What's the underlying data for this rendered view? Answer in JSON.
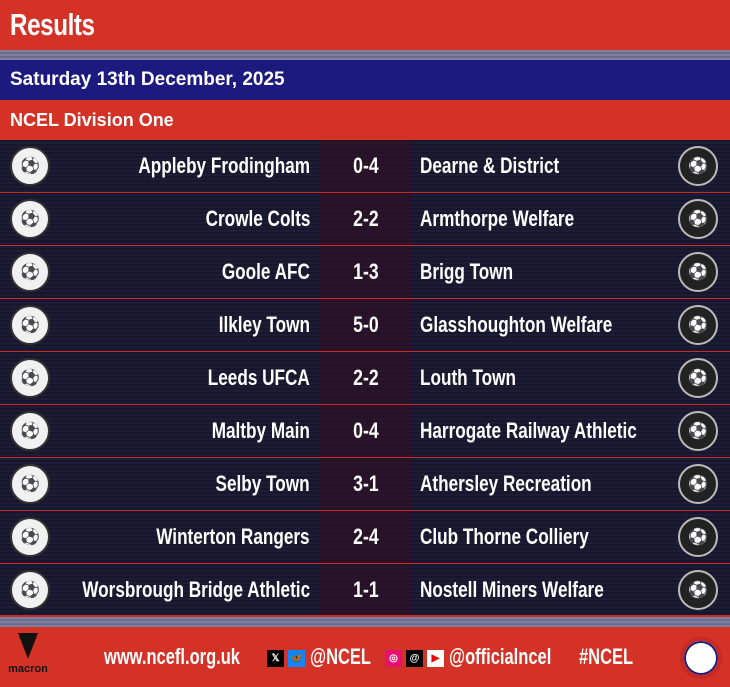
{
  "header": {
    "title": "Results"
  },
  "date": "Saturday 13th December, 2025",
  "division": "NCEL Division One",
  "matches": [
    {
      "home": "Appleby Frodingham",
      "score": "0-4",
      "away": "Dearne & District"
    },
    {
      "home": "Crowle Colts",
      "score": "2-2",
      "away": "Armthorpe Welfare"
    },
    {
      "home": "Goole AFC",
      "score": "1-3",
      "away": "Brigg Town"
    },
    {
      "home": "Ilkley Town",
      "score": "5-0",
      "away": "Glasshoughton Welfare"
    },
    {
      "home": "Leeds UFCA",
      "score": "2-2",
      "away": "Louth Town"
    },
    {
      "home": "Maltby Main",
      "score": "0-4",
      "away": "Harrogate Railway Athletic"
    },
    {
      "home": "Selby Town",
      "score": "3-1",
      "away": "Athersley Recreation"
    },
    {
      "home": "Winterton Rangers",
      "score": "2-4",
      "away": "Club Thorne Colliery"
    },
    {
      "home": "Worsbrough Bridge Athletic",
      "score": "1-1",
      "away": "Nostell Miners Welfare"
    }
  ],
  "footer": {
    "sponsor": "macron",
    "website": "www.ncefl.org.uk",
    "handle1": "@NCEL",
    "handle2": "@officialncel",
    "hashtag": "#NCEL"
  },
  "colors": {
    "red": "#d43127",
    "blue": "#1c1a7e",
    "dark": "#16172c"
  }
}
